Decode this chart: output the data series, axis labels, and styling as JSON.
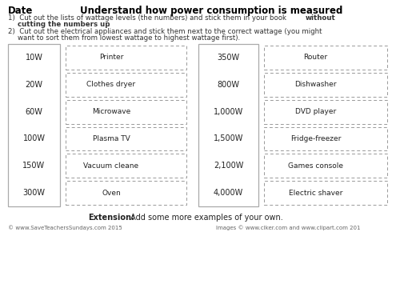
{
  "title": "Understand how power consumption is measured",
  "date_label": "Date",
  "left_wattages": [
    "10W",
    "20W",
    "60W",
    "100W",
    "150W",
    "300W"
  ],
  "right_wattages": [
    "350W",
    "800W",
    "1,000W",
    "1,500W",
    "2,100W",
    "4,000W"
  ],
  "left_appliances": [
    "Printer",
    "Clothes dryer",
    "Microwave",
    "Plasma TV",
    "Vacuum cleane",
    "Oven"
  ],
  "right_appliances": [
    "Router",
    "Dishwasher",
    "DVD player",
    "Fridge-freezer",
    "Games console",
    "Electric shaver"
  ],
  "extension_bold": "Extension:",
  "extension_normal": " Add some more examples of your own.",
  "footer_left": "© www.SaveTeachersSundays.com 2015",
  "footer_right": "Images © www.clker.com and www.clipart.com 201",
  "bg_color": "#ffffff",
  "dash_color": "#999999",
  "solid_color": "#aaaaaa",
  "text_color": "#222222",
  "title_color": "#000000",
  "instr_color": "#333333"
}
